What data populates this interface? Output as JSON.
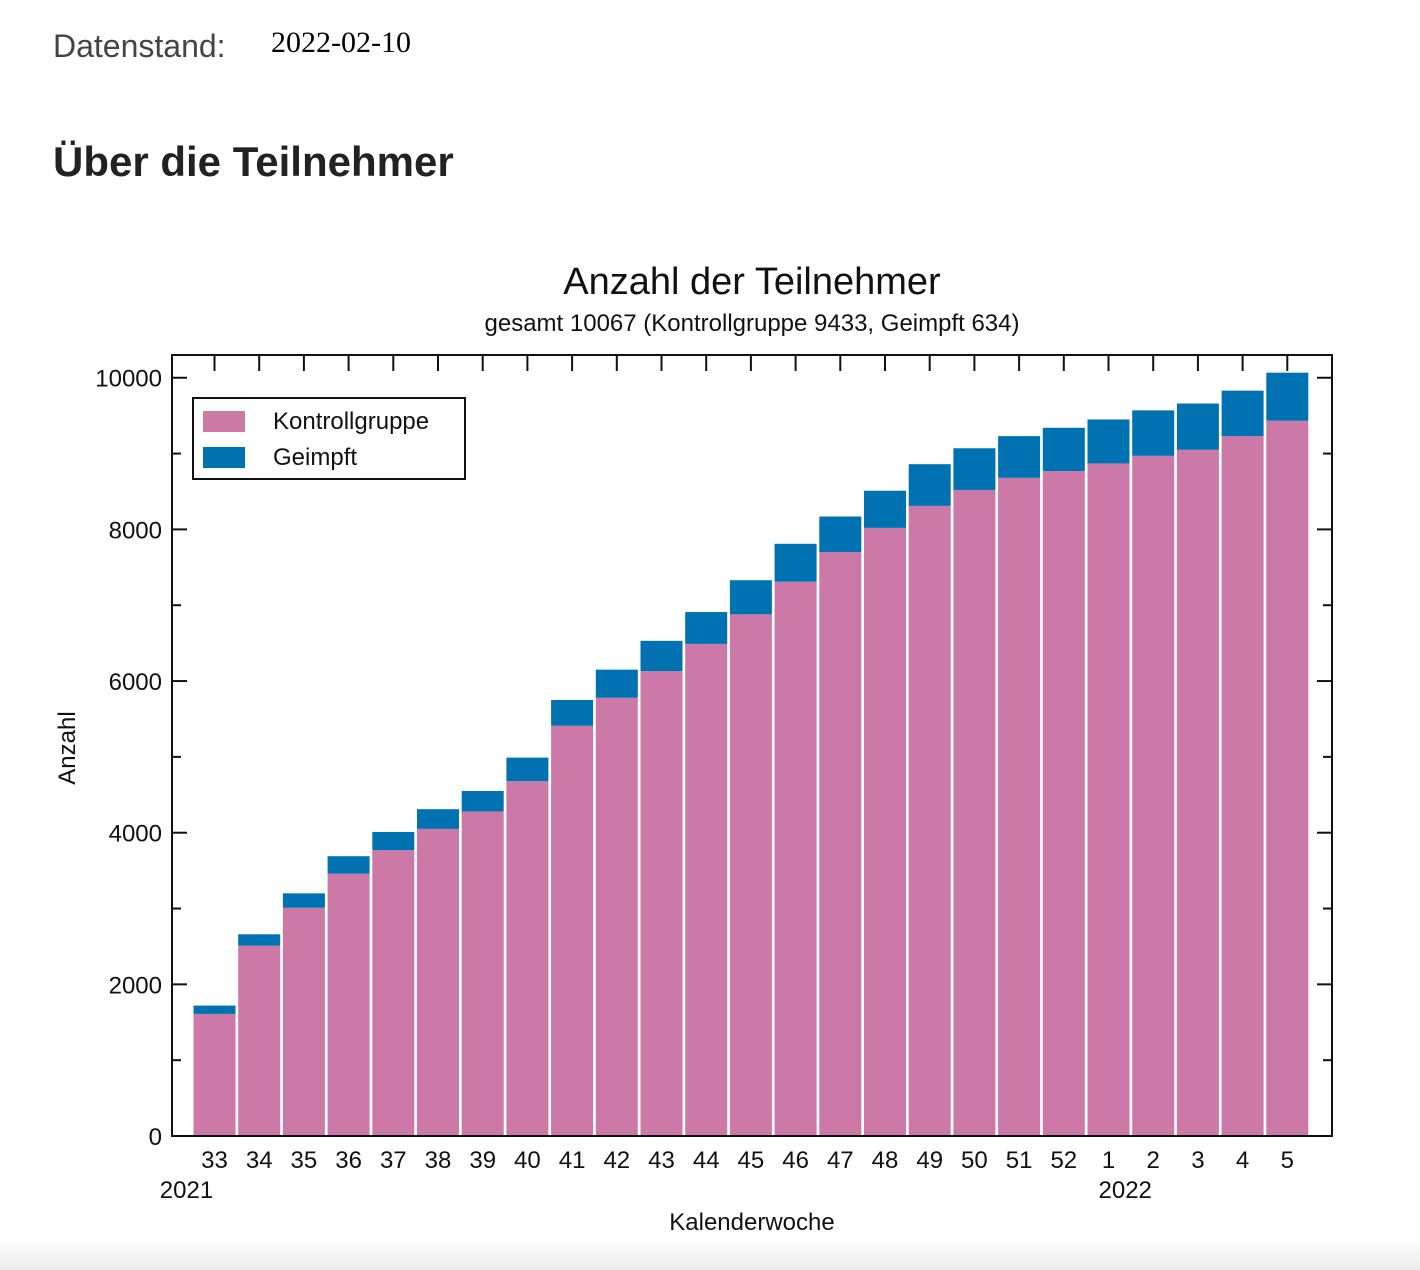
{
  "header": {
    "data_label": "Datenstand:",
    "data_date": "2022-02-10"
  },
  "section": {
    "title": "Über die Teilnehmer"
  },
  "chart_data": {
    "type": "bar",
    "stacked": true,
    "title": "Anzahl der Teilnehmer",
    "subtitle": "gesamt 10067 (Kontrollgruppe 9433, Geimpft 634)",
    "xlabel": "Kalenderwoche",
    "ylabel": "Anzahl",
    "ylim": [
      0,
      10300
    ],
    "yticks": [
      0,
      2000,
      4000,
      6000,
      8000,
      10000
    ],
    "grid": false,
    "legend_position": "top-left",
    "categories": [
      "33",
      "34",
      "35",
      "36",
      "37",
      "38",
      "39",
      "40",
      "41",
      "42",
      "43",
      "44",
      "45",
      "46",
      "47",
      "48",
      "49",
      "50",
      "51",
      "52",
      "1",
      "2",
      "3",
      "4",
      "5"
    ],
    "year_labels": [
      {
        "category": "33",
        "label": "2021"
      },
      {
        "category": "2",
        "label": "2022"
      }
    ],
    "series": [
      {
        "name": "Kontrollgruppe",
        "color": "#cc79a7",
        "values": [
          1610,
          2510,
          3010,
          3460,
          3770,
          4050,
          4280,
          4680,
          5410,
          5780,
          6130,
          6490,
          6880,
          7310,
          7700,
          8020,
          8310,
          8520,
          8680,
          8770,
          8870,
          8970,
          9050,
          9230,
          9433
        ]
      },
      {
        "name": "Geimpft",
        "color": "#0072b2",
        "values": [
          110,
          150,
          190,
          230,
          240,
          260,
          270,
          310,
          340,
          370,
          400,
          420,
          450,
          500,
          470,
          490,
          550,
          550,
          550,
          570,
          580,
          600,
          610,
          600,
          634
        ]
      }
    ]
  }
}
